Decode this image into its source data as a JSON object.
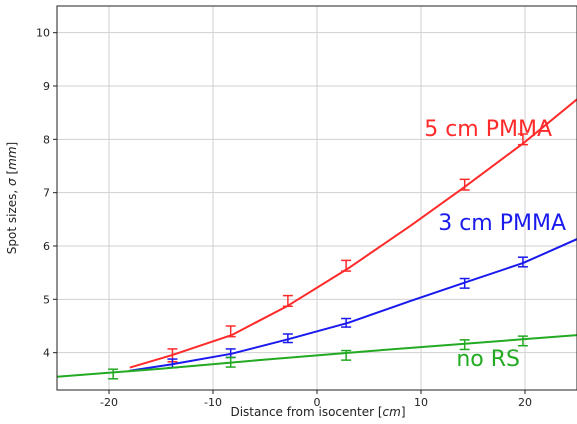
{
  "chart_data": {
    "type": "line",
    "xlabel_prefix": "Distance from isocenter [",
    "xlabel_unit": "cm",
    "xlabel_suffix": "]",
    "ylabel_prefix": "Spot sizes, ",
    "ylabel_sigma": "σ",
    "ylabel_open": " [",
    "ylabel_unit": "mm",
    "ylabel_close": "]",
    "xlim": [
      -25,
      25
    ],
    "ylim": [
      3.3,
      10.5
    ],
    "xticks": [
      -20,
      -10,
      0,
      10,
      20
    ],
    "yticks": [
      4,
      5,
      6,
      7,
      8,
      9,
      10
    ],
    "grid": true,
    "series": [
      {
        "name": "5 cm PMMA",
        "color": "#ff2a2a",
        "fit": [
          [
            -18,
            3.72
          ],
          [
            -14,
            3.95
          ],
          [
            -8.2,
            4.33
          ],
          [
            -2.8,
            4.88
          ],
          [
            3,
            5.58
          ],
          [
            9,
            6.38
          ],
          [
            14,
            7.08
          ],
          [
            19.8,
            7.92
          ],
          [
            25,
            8.75
          ]
        ],
        "points": [
          {
            "x": -13.9,
            "y": 3.95,
            "err": 0.12
          },
          {
            "x": -8.3,
            "y": 4.4,
            "err": 0.1
          },
          {
            "x": -2.8,
            "y": 4.97,
            "err": 0.1
          },
          {
            "x": 2.8,
            "y": 5.63,
            "err": 0.1
          },
          {
            "x": 14.2,
            "y": 7.15,
            "err": 0.1
          },
          {
            "x": 19.8,
            "y": 8.0,
            "err": 0.1
          }
        ]
      },
      {
        "name": "3 cm PMMA",
        "color": "#1a1aee",
        "fit": [
          [
            -18,
            3.66
          ],
          [
            -14,
            3.78
          ],
          [
            -8.2,
            3.98
          ],
          [
            -2.8,
            4.25
          ],
          [
            3,
            4.56
          ],
          [
            9,
            4.97
          ],
          [
            14,
            5.3
          ],
          [
            19.8,
            5.68
          ],
          [
            25,
            6.13
          ]
        ],
        "points": [
          {
            "x": -13.9,
            "y": 3.8,
            "err": 0.08
          },
          {
            "x": -8.3,
            "y": 3.99,
            "err": 0.08
          },
          {
            "x": -2.8,
            "y": 4.27,
            "err": 0.08
          },
          {
            "x": 2.8,
            "y": 4.56,
            "err": 0.08
          },
          {
            "x": 14.2,
            "y": 5.3,
            "err": 0.09
          },
          {
            "x": 19.8,
            "y": 5.7,
            "err": 0.09
          }
        ]
      },
      {
        "name": "no RS",
        "color": "#22aa22",
        "fit": [
          [
            -25,
            3.55
          ],
          [
            -15,
            3.7
          ],
          [
            -5,
            3.87
          ],
          [
            5,
            4.03
          ],
          [
            15,
            4.18
          ],
          [
            25,
            4.33
          ]
        ],
        "points": [
          {
            "x": -19.6,
            "y": 3.6,
            "err": 0.09
          },
          {
            "x": -8.3,
            "y": 3.82,
            "err": 0.09
          },
          {
            "x": 2.8,
            "y": 3.95,
            "err": 0.09
          },
          {
            "x": 14.2,
            "y": 4.15,
            "err": 0.09
          },
          {
            "x": 19.8,
            "y": 4.22,
            "err": 0.09
          }
        ]
      }
    ]
  }
}
